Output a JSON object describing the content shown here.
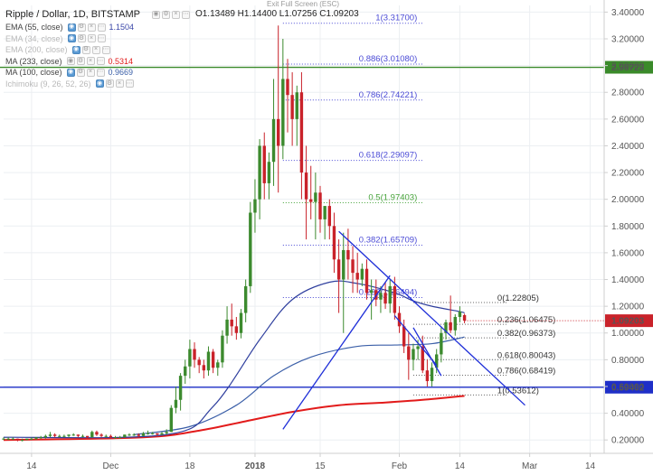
{
  "header": {
    "symbol": "Ripple / Dollar, 1D, BITSTAMP",
    "ohlc": "O1.13489  H1.14400  L1.07256  C1.09203",
    "exit_fullscreen": "Exit Full Screen (ESC)"
  },
  "indicators": [
    {
      "label": "EMA (55, close)",
      "value": "1.1504",
      "color": "#3a46a8",
      "dim": false,
      "active_btn": 0
    },
    {
      "label": "EMA (34, close)",
      "value": "",
      "color": "#b9b9b9",
      "dim": true,
      "active_btn": 0
    },
    {
      "label": "EMA (200, close)",
      "value": "",
      "color": "#b9b9b9",
      "dim": true,
      "active_btn": 0
    },
    {
      "label": "MA (233, close)",
      "value": "0.5314",
      "color": "#e21b1b",
      "dim": false,
      "active_btn": -1
    },
    {
      "label": "MA (100, close)",
      "value": "0.9669",
      "color": "#3b5fa8",
      "dim": false,
      "active_btn": 0
    },
    {
      "label": "Ichimoku (9, 26, 52, 26)",
      "value": "",
      "color": "#b9b9b9",
      "dim": true,
      "active_btn": 0
    }
  ],
  "colors": {
    "up": "#3c8a2e",
    "down": "#c9222a",
    "ema55": "#2f3f9e",
    "ma100": "#3b5fa8",
    "ma233": "#e21b1b",
    "fib": "#4b4bd6",
    "fib_green": "#46a33a",
    "trend": "#1f2fd8",
    "hline_blue": "#1f2fc8",
    "hline_green": "#3a8a2a"
  },
  "chart_data": {
    "type": "candlestick",
    "ylim": [
      0.1,
      3.45
    ],
    "y_ticks": [
      "3.40000",
      "3.20000",
      "3.00000",
      "2.80000",
      "2.60000",
      "2.40000",
      "2.20000",
      "2.00000",
      "1.80000",
      "1.60000",
      "1.40000",
      "1.20000",
      "1.00000",
      "0.80000",
      "0.60000",
      "0.40000",
      "0.20000"
    ],
    "x_labels": [
      {
        "date": "2017-11-14",
        "label": "14"
      },
      {
        "date": "2017-12-01",
        "label": "Dec"
      },
      {
        "date": "2017-12-18",
        "label": "18"
      },
      {
        "date": "2018-01-01",
        "label": "2018"
      },
      {
        "date": "2018-01-15",
        "label": "15"
      },
      {
        "date": "2018-02-01",
        "label": "Feb"
      },
      {
        "date": "2018-02-14",
        "label": "14"
      },
      {
        "date": "2018-03-01",
        "label": "Mar"
      },
      {
        "date": "2018-03-14",
        "label": "14"
      }
    ],
    "x_range": [
      "2017-11-08",
      "2018-03-17"
    ],
    "candles_start": "2017-11-08",
    "candles": [
      [
        0.21,
        0.22,
        0.2,
        0.21
      ],
      [
        0.21,
        0.22,
        0.2,
        0.21
      ],
      [
        0.21,
        0.22,
        0.2,
        0.21
      ],
      [
        0.21,
        0.21,
        0.19,
        0.2
      ],
      [
        0.2,
        0.21,
        0.19,
        0.2
      ],
      [
        0.2,
        0.21,
        0.2,
        0.21
      ],
      [
        0.21,
        0.22,
        0.2,
        0.21
      ],
      [
        0.21,
        0.22,
        0.2,
        0.22
      ],
      [
        0.22,
        0.23,
        0.21,
        0.22
      ],
      [
        0.22,
        0.24,
        0.21,
        0.23
      ],
      [
        0.23,
        0.26,
        0.22,
        0.24
      ],
      [
        0.24,
        0.25,
        0.22,
        0.23
      ],
      [
        0.23,
        0.24,
        0.22,
        0.23
      ],
      [
        0.23,
        0.24,
        0.22,
        0.23
      ],
      [
        0.23,
        0.24,
        0.22,
        0.24
      ],
      [
        0.24,
        0.25,
        0.23,
        0.24
      ],
      [
        0.24,
        0.24,
        0.22,
        0.23
      ],
      [
        0.23,
        0.24,
        0.22,
        0.23
      ],
      [
        0.23,
        0.23,
        0.21,
        0.22
      ],
      [
        0.22,
        0.27,
        0.22,
        0.26
      ],
      [
        0.26,
        0.27,
        0.23,
        0.24
      ],
      [
        0.24,
        0.25,
        0.22,
        0.23
      ],
      [
        0.23,
        0.24,
        0.22,
        0.23
      ],
      [
        0.23,
        0.24,
        0.21,
        0.22
      ],
      [
        0.22,
        0.23,
        0.21,
        0.22
      ],
      [
        0.22,
        0.23,
        0.22,
        0.22
      ],
      [
        0.22,
        0.24,
        0.22,
        0.24
      ],
      [
        0.24,
        0.25,
        0.23,
        0.24
      ],
      [
        0.24,
        0.25,
        0.23,
        0.24
      ],
      [
        0.24,
        0.25,
        0.22,
        0.23
      ],
      [
        0.23,
        0.26,
        0.23,
        0.25
      ],
      [
        0.25,
        0.27,
        0.24,
        0.25
      ],
      [
        0.25,
        0.26,
        0.24,
        0.25
      ],
      [
        0.25,
        0.25,
        0.23,
        0.24
      ],
      [
        0.24,
        0.26,
        0.24,
        0.25
      ],
      [
        0.25,
        0.28,
        0.24,
        0.26
      ],
      [
        0.26,
        0.46,
        0.26,
        0.44
      ],
      [
        0.44,
        0.6,
        0.4,
        0.5
      ],
      [
        0.5,
        0.7,
        0.42,
        0.68
      ],
      [
        0.68,
        0.8,
        0.62,
        0.75
      ],
      [
        0.75,
        0.95,
        0.66,
        0.88
      ],
      [
        0.88,
        0.93,
        0.74,
        0.8
      ],
      [
        0.8,
        0.82,
        0.7,
        0.76
      ],
      [
        0.76,
        0.8,
        0.66,
        0.72
      ],
      [
        0.72,
        0.9,
        0.68,
        0.86
      ],
      [
        0.86,
        0.88,
        0.7,
        0.74
      ],
      [
        0.74,
        0.8,
        0.68,
        0.78
      ],
      [
        0.78,
        1.02,
        0.74,
        0.98
      ],
      [
        0.98,
        1.2,
        0.92,
        1.1
      ],
      [
        1.1,
        1.22,
        0.98,
        1.05
      ],
      [
        1.05,
        1.12,
        0.95,
        1.0
      ],
      [
        1.0,
        1.18,
        0.96,
        1.15
      ],
      [
        1.15,
        1.4,
        1.08,
        1.35
      ],
      [
        1.35,
        1.98,
        1.3,
        1.9
      ],
      [
        1.9,
        2.15,
        1.75,
        2.0
      ],
      [
        2.0,
        2.45,
        1.85,
        2.4
      ],
      [
        2.4,
        2.5,
        2.0,
        2.12
      ],
      [
        2.12,
        2.35,
        2.0,
        2.28
      ],
      [
        2.28,
        2.9,
        2.1,
        2.6
      ],
      [
        2.6,
        3.3,
        2.05,
        2.4
      ],
      [
        2.4,
        3.2,
        2.3,
        2.9
      ],
      [
        2.9,
        3.05,
        2.5,
        2.78
      ],
      [
        2.78,
        2.95,
        2.4,
        2.6
      ],
      [
        2.6,
        2.85,
        2.4,
        2.8
      ],
      [
        2.8,
        2.95,
        2.0,
        2.2
      ],
      [
        2.2,
        2.4,
        1.7,
        2.0
      ],
      [
        2.0,
        2.25,
        1.85,
        1.98
      ],
      [
        1.98,
        2.2,
        1.7,
        2.05
      ],
      [
        2.05,
        2.1,
        1.75,
        1.85
      ],
      [
        1.85,
        1.95,
        1.7,
        1.95
      ],
      [
        1.95,
        2.0,
        1.7,
        1.8
      ],
      [
        1.8,
        1.9,
        1.45,
        1.55
      ],
      [
        1.55,
        1.7,
        1.15,
        1.4
      ],
      [
        1.4,
        1.75,
        1.0,
        1.62
      ],
      [
        1.62,
        1.78,
        1.4,
        1.55
      ],
      [
        1.55,
        1.65,
        1.3,
        1.45
      ],
      [
        1.45,
        1.6,
        1.3,
        1.4
      ],
      [
        1.4,
        1.52,
        1.35,
        1.48
      ],
      [
        1.48,
        1.55,
        1.25,
        1.3
      ],
      [
        1.3,
        1.4,
        1.1,
        1.32
      ],
      [
        1.32,
        1.4,
        1.2,
        1.25
      ],
      [
        1.25,
        1.35,
        1.15,
        1.3
      ],
      [
        1.3,
        1.38,
        1.18,
        1.22
      ],
      [
        1.22,
        1.4,
        1.15,
        1.35
      ],
      [
        1.35,
        1.42,
        1.1,
        1.15
      ],
      [
        1.15,
        1.2,
        1.0,
        1.05
      ],
      [
        1.05,
        1.1,
        0.85,
        0.9
      ],
      [
        0.9,
        1.0,
        0.65,
        0.8
      ],
      [
        0.8,
        0.92,
        0.72,
        0.88
      ],
      [
        0.88,
        0.95,
        0.8,
        0.9
      ],
      [
        0.9,
        0.98,
        0.7,
        0.72
      ],
      [
        0.72,
        0.8,
        0.6,
        0.64
      ],
      [
        0.64,
        0.78,
        0.6,
        0.74
      ],
      [
        0.74,
        0.88,
        0.7,
        0.84
      ],
      [
        0.84,
        1.05,
        0.78,
        1.0
      ],
      [
        1.0,
        1.1,
        0.95,
        1.08
      ],
      [
        1.08,
        1.28,
        1.0,
        1.02
      ],
      [
        1.02,
        1.14,
        0.98,
        1.12
      ],
      [
        1.12,
        1.2,
        1.08,
        1.16
      ],
      [
        1.134,
        1.144,
        1.073,
        1.092
      ]
    ],
    "ema55": [
      [
        0,
        0.22
      ],
      [
        35,
        0.24
      ],
      [
        45,
        0.45
      ],
      [
        55,
        0.95
      ],
      [
        62,
        1.25
      ],
      [
        70,
        1.38
      ],
      [
        76,
        1.37
      ],
      [
        84,
        1.3
      ],
      [
        88,
        1.24
      ],
      [
        92,
        1.2
      ],
      [
        98,
        1.16
      ],
      [
        99,
        1.15
      ]
    ],
    "ma100": [
      [
        28,
        0.24
      ],
      [
        40,
        0.3
      ],
      [
        50,
        0.46
      ],
      [
        58,
        0.68
      ],
      [
        66,
        0.82
      ],
      [
        76,
        0.9
      ],
      [
        84,
        0.91
      ],
      [
        92,
        0.92
      ],
      [
        99,
        0.97
      ]
    ],
    "ma233": [
      [
        0,
        0.2
      ],
      [
        30,
        0.22
      ],
      [
        42,
        0.27
      ],
      [
        52,
        0.34
      ],
      [
        62,
        0.41
      ],
      [
        72,
        0.46
      ],
      [
        82,
        0.48
      ],
      [
        90,
        0.5
      ],
      [
        99,
        0.53
      ]
    ],
    "fib_upper": [
      {
        "label": "1(3.31700)",
        "value": 3.317,
        "color": "fib"
      },
      {
        "label": "0.886(3.01080)",
        "value": 3.0108,
        "color": "fib"
      },
      {
        "label": "0.786(2.74221)",
        "value": 2.74221,
        "color": "fib"
      },
      {
        "label": "0.618(2.29097)",
        "value": 2.29097,
        "color": "fib"
      },
      {
        "label": "0.5(1.97403)",
        "value": 1.97403,
        "color": "fib_green"
      },
      {
        "label": "0.382(1.65709)",
        "value": 1.65709,
        "color": "fib"
      },
      {
        "label": "0.236(1.26494)",
        "value": 1.26494,
        "color": "fib"
      }
    ],
    "fib_upper_x": [
      60,
      90
    ],
    "fib_lower": [
      {
        "label": "0(1.22805)",
        "value": 1.22805
      },
      {
        "label": "0.236(1.06475)",
        "value": 1.06475
      },
      {
        "label": "0.382(0.96373)",
        "value": 0.96373
      },
      {
        "label": "0.618(0.80043)",
        "value": 0.80043
      },
      {
        "label": "0.786(0.68419)",
        "value": 0.68419
      },
      {
        "label": "1(0.53612)",
        "value": 0.53612
      }
    ],
    "fib_lower_x": [
      88,
      108
    ],
    "trendlines": [
      {
        "from": [
          72,
          1.76
        ],
        "to": [
          112,
          0.46
        ]
      },
      {
        "from": [
          88,
          1.04
        ],
        "to": [
          94,
          0.68
        ]
      },
      {
        "from": [
          60,
          0.28
        ],
        "to": [
          83,
          1.43
        ]
      },
      {
        "from": [
          84,
          1.13
        ],
        "to": [
          93,
          0.76
        ]
      }
    ],
    "hlines": [
      {
        "value": 2.98723,
        "label": "2.98723",
        "color": "hline_green"
      },
      {
        "value": 0.59462,
        "label": "0.59462",
        "color": "hline_blue"
      }
    ],
    "last_price": {
      "value": 1.09203,
      "label": "1.09203"
    }
  }
}
